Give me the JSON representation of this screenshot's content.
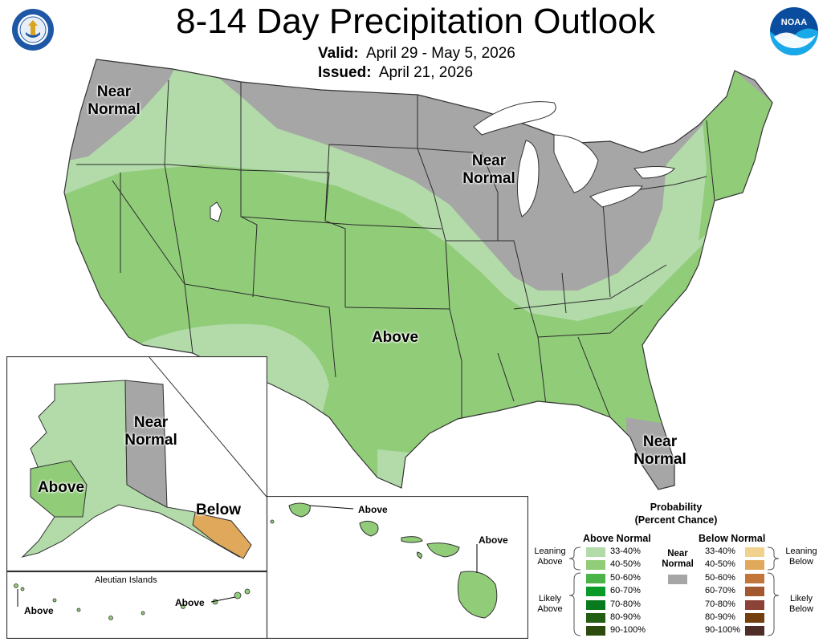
{
  "header": {
    "title": "8-14 Day Precipitation Outlook",
    "valid_label": "Valid:",
    "valid_value": "April 29 - May 5, 2026",
    "issued_label": "Issued:",
    "issued_value": "April 21, 2026"
  },
  "logos": {
    "commerce_seal": "seal-icon",
    "noaa": "NOAA"
  },
  "conus_labels": {
    "nw": "Near\nNormal",
    "mw": "Near\nNormal",
    "fl": "Near\nNormal",
    "south": "Above"
  },
  "alaska_labels": {
    "east": "Near\nNormal",
    "west": "Above",
    "se": "Below"
  },
  "aleutians": {
    "title": "Aleutian Islands",
    "left": "Above",
    "right": "Above"
  },
  "hawaii": {
    "left": "Above",
    "right": "Above"
  },
  "legend": {
    "title": "Probability\n(Percent Chance)",
    "above_header": "Above Normal",
    "below_header": "Below Normal",
    "near_label": "Near\nNormal",
    "leaning_above": "Leaning\nAbove",
    "likely_above": "Likely\nAbove",
    "leaning_below": "Leaning\nBelow",
    "likely_below": "Likely\nBelow",
    "above_rows": [
      {
        "pct": "33-40%",
        "color": "#b3dbaa"
      },
      {
        "pct": "40-50%",
        "color": "#91cc79"
      },
      {
        "pct": "50-60%",
        "color": "#4cb349"
      },
      {
        "pct": "60-70%",
        "color": "#0a9a27"
      },
      {
        "pct": "70-80%",
        "color": "#0a7a1e"
      },
      {
        "pct": "80-90%",
        "color": "#215d12"
      },
      {
        "pct": "90-100%",
        "color": "#2a4a0e"
      }
    ],
    "below_rows": [
      {
        "pct": "33-40%",
        "color": "#f0d28e"
      },
      {
        "pct": "40-50%",
        "color": "#e0a85a"
      },
      {
        "pct": "50-60%",
        "color": "#c2763a"
      },
      {
        "pct": "60-70%",
        "color": "#a45830"
      },
      {
        "pct": "70-80%",
        "color": "#8c4236"
      },
      {
        "pct": "80-90%",
        "color": "#743f0e"
      },
      {
        "pct": "90-100%",
        "color": "#4e2c28"
      }
    ],
    "near_color": "#a6a6a6"
  },
  "colors": {
    "leaning_above": "#b3dbaa",
    "above_40_50": "#91cc79",
    "near_normal": "#a6a6a6",
    "below_40_50": "#e0a85a",
    "lakes": "#ffffff"
  }
}
